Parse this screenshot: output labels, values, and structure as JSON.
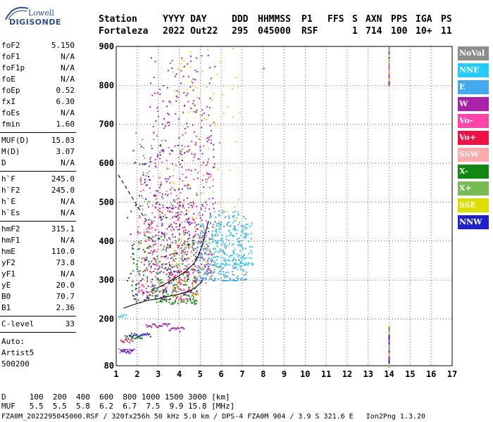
{
  "header": {
    "logo_top": "Lowell",
    "logo_bottom": "DIGISONDE",
    "col_labels": [
      "Station",
      "YYYY DAY",
      "DDD",
      "HHMMSS",
      "P1",
      "FFS",
      "S",
      "AXN",
      "PPS",
      "IGA",
      "PS"
    ],
    "col_values": [
      "Fortaleza",
      "2022 Out22",
      "295",
      "045000",
      "RSF",
      "",
      "1",
      "714",
      "100",
      "10+",
      "11"
    ]
  },
  "params_group1": [
    {
      "label": "foF2",
      "value": "5.150"
    },
    {
      "label": "foF1",
      "value": "N/A"
    },
    {
      "label": "foF1p",
      "value": "N/A"
    },
    {
      "label": "foE",
      "value": "N/A"
    },
    {
      "label": "foEp",
      "value": "0.52"
    },
    {
      "label": "fxI",
      "value": "6.30"
    },
    {
      "label": "foEs",
      "value": "N/A"
    },
    {
      "label": "fmin",
      "value": "1.60"
    }
  ],
  "params_group2": [
    {
      "label": "MUF(D)",
      "value": "15.83"
    },
    {
      "label": "M(D)",
      "value": "3.07"
    },
    {
      "label": "D",
      "value": "N/A"
    }
  ],
  "params_group3": [
    {
      "label": "h`F",
      "value": "245.0"
    },
    {
      "label": "h`F2",
      "value": "245.0"
    },
    {
      "label": "h`E",
      "value": "N/A"
    },
    {
      "label": "h`Es",
      "value": "N/A"
    }
  ],
  "params_group4": [
    {
      "label": "hmF2",
      "value": "315.1"
    },
    {
      "label": "hmF1",
      "value": "N/A"
    },
    {
      "label": "hmE",
      "value": "110.0"
    },
    {
      "label": "yF2",
      "value": "73.8"
    },
    {
      "label": "yF1",
      "value": "N/A"
    },
    {
      "label": "yE",
      "value": "20.0"
    },
    {
      "label": "B0",
      "value": "70.7"
    },
    {
      "label": "B1",
      "value": "2.36"
    }
  ],
  "params_group5": [
    {
      "label": "C-level",
      "value": "33"
    }
  ],
  "auto": {
    "label": "Auto:",
    "software": "Artist5",
    "version": "500200"
  },
  "legend": [
    {
      "label": "NoVal",
      "color": "#8c8c8c"
    },
    {
      "label": "NNE",
      "color": "#22ccff"
    },
    {
      "label": "E",
      "color": "#44aaee"
    },
    {
      "label": "W",
      "color": "#aa22aa"
    },
    {
      "label": "Vo-",
      "color": "#ff44aa"
    },
    {
      "label": "Vo+",
      "color": "#ee1144"
    },
    {
      "label": "SSW",
      "color": "#ffaaaa"
    },
    {
      "label": "X-",
      "color": "#118811"
    },
    {
      "label": "X+",
      "color": "#77bb55"
    },
    {
      "label": "SSE",
      "color": "#dddd00"
    },
    {
      "label": "NNW",
      "color": "#2222cc"
    }
  ],
  "footer": {
    "d_row_label": "D",
    "d_values": [
      "100",
      "200",
      "400",
      "600",
      "800",
      "1000",
      "1500",
      "3000"
    ],
    "d_unit": "[km]",
    "muf_row_label": "MUF",
    "muf_values": [
      "5.5",
      "5.5",
      "5.8",
      "6.2",
      "6.7",
      "7.5",
      "9.9",
      "15.8"
    ],
    "muf_unit": "[MHz]",
    "info_line": "FZA0M_2022295045000.RSF / 320fx256h 50 kHz 5.0 km / DPS-4 FZA0M 904 / 3.9 S 321.6 E   Ion2Png 1.3.20"
  },
  "chart_data": {
    "type": "scatter",
    "title": "",
    "xlabel": "",
    "ylabel": "",
    "xlim": [
      1,
      17
    ],
    "ylim": [
      80,
      900
    ],
    "x_ticks": [
      1,
      2,
      3,
      4,
      5,
      6,
      7,
      8,
      9,
      10,
      11,
      12,
      13,
      14,
      15,
      16,
      17
    ],
    "y_ticks": [
      80,
      200,
      300,
      400,
      500,
      600,
      700,
      800,
      900
    ],
    "grid": true,
    "legend_position": "right",
    "series": [
      {
        "type": "line",
        "points": [
          [
            1.35,
            228
          ],
          [
            2,
            240
          ],
          [
            2.5,
            248
          ],
          [
            3,
            252
          ],
          [
            3.5,
            258
          ],
          [
            4,
            264
          ],
          [
            4.5,
            272
          ],
          [
            4.8,
            282
          ],
          [
            5,
            292
          ],
          [
            5.1,
            300
          ]
        ]
      },
      {
        "type": "line",
        "points": [
          [
            2.9,
            278
          ],
          [
            3.4,
            292
          ],
          [
            3.9,
            308
          ],
          [
            4.3,
            322
          ],
          [
            4.7,
            342
          ],
          [
            4.9,
            362
          ],
          [
            5.05,
            382
          ],
          [
            5.15,
            400
          ],
          [
            5.2,
            412
          ],
          [
            5.3,
            432
          ],
          [
            5.4,
            452
          ]
        ]
      },
      {
        "type": "dashed",
        "points": [
          [
            1.1,
            570
          ],
          [
            1.5,
            535
          ],
          [
            1.9,
            500
          ],
          [
            2.2,
            472
          ],
          [
            2.5,
            448
          ],
          [
            2.7,
            432
          ]
        ]
      }
    ],
    "point_regions": [
      {
        "direction": "W",
        "x_range": [
          2.5,
          5.7
        ],
        "y_range": [
          320,
          880
        ],
        "density": 380
      },
      {
        "direction": "Vo-",
        "x_range": [
          2.0,
          5.6
        ],
        "y_range": [
          270,
          700
        ],
        "density": 260
      },
      {
        "direction": "Vo+",
        "x_range": [
          2.0,
          4.8
        ],
        "y_range": [
          250,
          520
        ],
        "density": 120
      },
      {
        "direction": "E",
        "x_range": [
          4.8,
          7.2
        ],
        "y_range": [
          300,
          480
        ],
        "density": 320
      },
      {
        "direction": "NNE",
        "x_range": [
          5.5,
          7.5
        ],
        "y_range": [
          340,
          450
        ],
        "density": 120
      },
      {
        "direction": "X-",
        "x_range": [
          1.7,
          4.8
        ],
        "y_range": [
          240,
          420
        ],
        "density": 200
      },
      {
        "direction": "X+",
        "x_range": [
          2.0,
          5.5
        ],
        "y_range": [
          260,
          650
        ],
        "density": 120
      },
      {
        "direction": "SSE",
        "x_range": [
          3.5,
          7.0
        ],
        "y_range": [
          260,
          900
        ],
        "density": 130
      },
      {
        "direction": "NNW",
        "x_range": [
          1.5,
          4.5
        ],
        "y_range": [
          250,
          650
        ],
        "density": 120
      },
      {
        "direction": "SSW",
        "x_range": [
          1.8,
          5.5
        ],
        "y_range": [
          260,
          600
        ],
        "density": 80
      },
      {
        "direction": "NoVal",
        "x_range": [
          1.5,
          6.0
        ],
        "y_range": [
          250,
          700
        ],
        "density": 30
      }
    ],
    "low_traces": [
      {
        "direction": "Vo+",
        "x_range": [
          1.2,
          1.8
        ],
        "y": 146
      },
      {
        "direction": "X-",
        "x_range": [
          1.4,
          2.2
        ],
        "y": 155
      },
      {
        "direction": "NNW",
        "x_range": [
          1.6,
          2.6
        ],
        "y": 160
      },
      {
        "direction": "Vo-",
        "x_range": [
          1.1,
          1.9
        ],
        "y": 120
      },
      {
        "direction": "NNW",
        "x_range": [
          1.2,
          1.8
        ],
        "y": 118
      },
      {
        "direction": "NNE",
        "x_range": [
          1.1,
          1.5
        ],
        "y": 208
      },
      {
        "direction": "W",
        "x_range": [
          2.4,
          3.5
        ],
        "y": 185
      },
      {
        "direction": "W",
        "x_range": [
          3.5,
          4.2
        ],
        "y": 175
      }
    ],
    "marker_column": {
      "x": 14,
      "top_range": [
        802,
        900
      ],
      "bottom_range": [
        80,
        185
      ]
    },
    "isolated_points": [
      {
        "direction": "Vo+",
        "x": 8.0,
        "y": 845
      }
    ]
  }
}
